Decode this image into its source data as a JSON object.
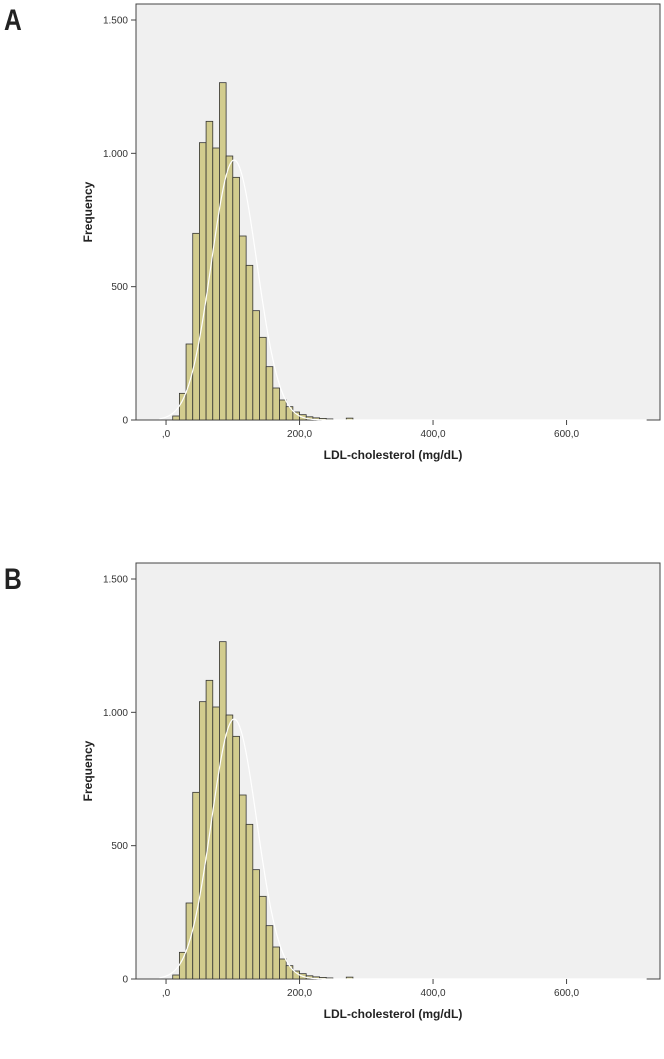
{
  "panels": [
    {
      "label": "A"
    },
    {
      "label": "B"
    }
  ],
  "chart_data": [
    {
      "type": "bar",
      "xlabel": "LDL-cholesterol (mg/dL)",
      "ylabel": "Frequency",
      "xlim": [
        -45,
        740
      ],
      "ylim": [
        0,
        1560
      ],
      "x_ticks": [
        {
          "value": 0,
          "label": ",0"
        },
        {
          "value": 200,
          "label": "200,0"
        },
        {
          "value": 400,
          "label": "400,0"
        },
        {
          "value": 600,
          "label": "600,0"
        }
      ],
      "y_ticks": [
        {
          "value": 0,
          "label": "0"
        },
        {
          "value": 500,
          "label": "500"
        },
        {
          "value": 1000,
          "label": "1.000"
        },
        {
          "value": 1500,
          "label": "1.500"
        }
      ],
      "bin_width": 10,
      "bins_start": [
        10,
        20,
        30,
        40,
        50,
        60,
        70,
        80,
        90,
        100,
        110,
        120,
        130,
        140,
        150,
        160,
        170,
        180,
        190,
        200,
        210,
        220,
        230,
        240,
        270
      ],
      "values": [
        15,
        100,
        285,
        700,
        1040,
        1120,
        1020,
        1265,
        990,
        910,
        690,
        580,
        410,
        310,
        200,
        120,
        75,
        50,
        30,
        20,
        12,
        8,
        6,
        4,
        7
      ],
      "normal_curve": {
        "mean": 102,
        "sd": 34,
        "peak": 975
      },
      "grid": false,
      "background": "#f0f0f0"
    },
    {
      "type": "bar",
      "xlabel": "LDL-cholesterol (mg/dL)",
      "ylabel": "Frequency",
      "xlim": [
        -45,
        740
      ],
      "ylim": [
        0,
        1560
      ],
      "x_ticks": [
        {
          "value": 0,
          "label": ",0"
        },
        {
          "value": 200,
          "label": "200,0"
        },
        {
          "value": 400,
          "label": "400,0"
        },
        {
          "value": 600,
          "label": "600,0"
        }
      ],
      "y_ticks": [
        {
          "value": 0,
          "label": "0"
        },
        {
          "value": 500,
          "label": "500"
        },
        {
          "value": 1000,
          "label": "1.000"
        },
        {
          "value": 1500,
          "label": "1.500"
        }
      ],
      "bin_width": 10,
      "bins_start": [
        10,
        20,
        30,
        40,
        50,
        60,
        70,
        80,
        90,
        100,
        110,
        120,
        130,
        140,
        150,
        160,
        170,
        180,
        190,
        200,
        210,
        220,
        230,
        240,
        270
      ],
      "values": [
        15,
        100,
        285,
        700,
        1040,
        1120,
        1020,
        1265,
        990,
        910,
        690,
        580,
        410,
        310,
        200,
        120,
        75,
        50,
        30,
        20,
        12,
        8,
        6,
        4,
        7
      ],
      "normal_curve": {
        "mean": 102,
        "sd": 34,
        "peak": 975
      },
      "grid": false,
      "background": "#f0f0f0"
    }
  ]
}
